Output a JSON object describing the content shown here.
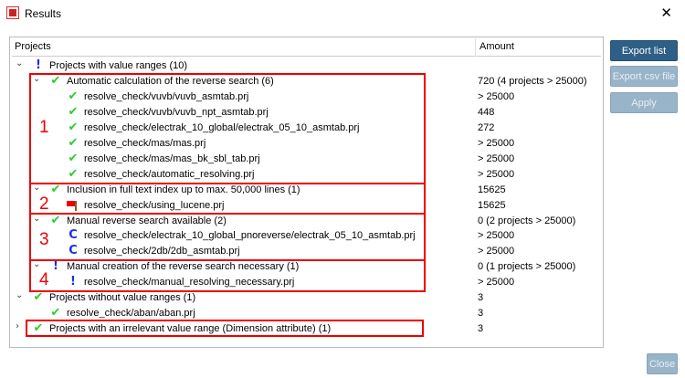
{
  "window": {
    "title": "Results",
    "close": "✕"
  },
  "table": {
    "headers": [
      "Projects",
      "Amount"
    ]
  },
  "rows": [
    {
      "level": 0,
      "expand": "v",
      "icon": "exclamation",
      "text": "Projects with value ranges (10)",
      "amount": ""
    },
    {
      "level": 1,
      "expand": "v",
      "icon": "check",
      "text": "Automatic calculation of the reverse search (6)",
      "amount": "720 (4 projects > 25000)"
    },
    {
      "level": 2,
      "icon": "check",
      "text": "resolve_check/vuvb/vuvb_asmtab.prj",
      "amount": "> 25000"
    },
    {
      "level": 2,
      "icon": "check",
      "text": "resolve_check/vuvb/vuvb_npt_asmtab.prj",
      "amount": "448"
    },
    {
      "level": 2,
      "icon": "check",
      "text": "resolve_check/electrak_10_global/electrak_05_10_asmtab.prj",
      "amount": "272"
    },
    {
      "level": 2,
      "icon": "check",
      "text": "resolve_check/mas/mas.prj",
      "amount": "> 25000"
    },
    {
      "level": 2,
      "icon": "check",
      "text": "resolve_check/mas/mas_bk_sbl_tab.prj",
      "amount": "> 25000"
    },
    {
      "level": 2,
      "icon": "check",
      "text": "resolve_check/automatic_resolving.prj",
      "amount": "> 25000"
    },
    {
      "level": 1,
      "expand": "v",
      "icon": "check",
      "text": "Inclusion in full text index up to max. 50,000 lines (1)",
      "amount": "15625"
    },
    {
      "level": 2,
      "icon": "flag",
      "text": "resolve_check/using_lucene.prj",
      "amount": "15625"
    },
    {
      "level": 1,
      "expand": "v",
      "icon": "check",
      "text": "Manual reverse search available (2)",
      "amount": "0 (2 projects > 25000)"
    },
    {
      "level": 2,
      "icon": "cycle",
      "text": "resolve_check/electrak_10_global_pnoreverse/electrak_05_10_asmtab.prj",
      "amount": "> 25000"
    },
    {
      "level": 2,
      "icon": "cycle",
      "text": "resolve_check/2db/2db_asmtab.prj",
      "amount": "> 25000"
    },
    {
      "level": 1,
      "expand": "v",
      "icon": "exclamation",
      "text": "Manual creation of the reverse search necessary (1)",
      "amount": "0 (1 projects > 25000)"
    },
    {
      "level": 2,
      "icon": "exclamation",
      "text": "resolve_check/manual_resolving_necessary.prj",
      "amount": "> 25000"
    },
    {
      "level": 0,
      "expand": "v",
      "icon": "check",
      "text": "Projects without value ranges (1)",
      "amount": "3"
    },
    {
      "level": 1,
      "icon": "check",
      "text": "resolve_check/aban/aban.prj",
      "amount": "3"
    },
    {
      "level": 0,
      "expand": ">",
      "icon": "check",
      "text": "Projects with an irrelevant value range (Dimension attribute) (1)",
      "amount": "3"
    }
  ],
  "annotations": [
    "1",
    "2",
    "3",
    "4"
  ],
  "buttons": {
    "export_list": "Export list",
    "export_csv": "Export csv file",
    "apply": "Apply",
    "close": "Close"
  },
  "colors": {
    "highlight": "#ee0000",
    "check": "#2ecc2e",
    "info": "#1a2fe0",
    "primary_button": "#2f5f86",
    "disabled_button": "#98b4c9"
  }
}
